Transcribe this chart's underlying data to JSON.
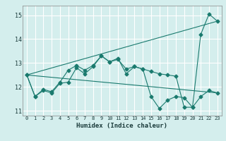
{
  "title": "",
  "xlabel": "Humidex (Indice chaleur)",
  "ylabel": "",
  "bg_color": "#d4eeed",
  "line_color": "#1a7a6e",
  "grid_color": "#ffffff",
  "xlim": [
    -0.5,
    23.5
  ],
  "ylim": [
    10.8,
    15.4
  ],
  "yticks": [
    11,
    12,
    13,
    14,
    15
  ],
  "xticks": [
    0,
    1,
    2,
    3,
    4,
    5,
    6,
    7,
    8,
    9,
    10,
    11,
    12,
    13,
    14,
    15,
    16,
    17,
    18,
    19,
    20,
    21,
    22,
    23
  ],
  "series": [
    {
      "x": [
        0,
        1,
        2,
        3,
        4,
        5,
        6,
        7,
        8,
        9,
        10,
        11,
        12,
        13,
        14,
        15,
        16,
        17,
        18,
        19,
        20,
        21,
        22,
        23
      ],
      "y": [
        12.5,
        11.6,
        11.9,
        11.8,
        12.2,
        12.7,
        12.9,
        12.7,
        12.9,
        13.3,
        13.05,
        13.15,
        12.75,
        12.85,
        12.75,
        12.65,
        12.55,
        12.5,
        12.45,
        11.15,
        11.15,
        14.2,
        15.05,
        14.75
      ],
      "marker": "D",
      "markersize": 2.5
    },
    {
      "x": [
        0,
        1,
        2,
        3,
        4,
        5,
        6,
        7,
        8,
        9,
        10,
        11,
        12,
        13,
        14,
        15,
        16,
        17,
        18,
        19,
        20,
        21,
        22,
        23
      ],
      "y": [
        12.5,
        11.6,
        11.85,
        11.75,
        12.15,
        12.2,
        12.8,
        12.55,
        12.85,
        13.3,
        13.05,
        13.2,
        12.55,
        12.85,
        12.75,
        11.6,
        11.1,
        11.45,
        11.6,
        11.55,
        11.15,
        11.6,
        11.85,
        11.75
      ],
      "marker": "D",
      "markersize": 2.5
    },
    {
      "x": [
        0,
        23
      ],
      "y": [
        12.5,
        14.75
      ],
      "marker": null,
      "markersize": 0
    },
    {
      "x": [
        0,
        23
      ],
      "y": [
        12.5,
        11.75
      ],
      "marker": null,
      "markersize": 0
    }
  ]
}
